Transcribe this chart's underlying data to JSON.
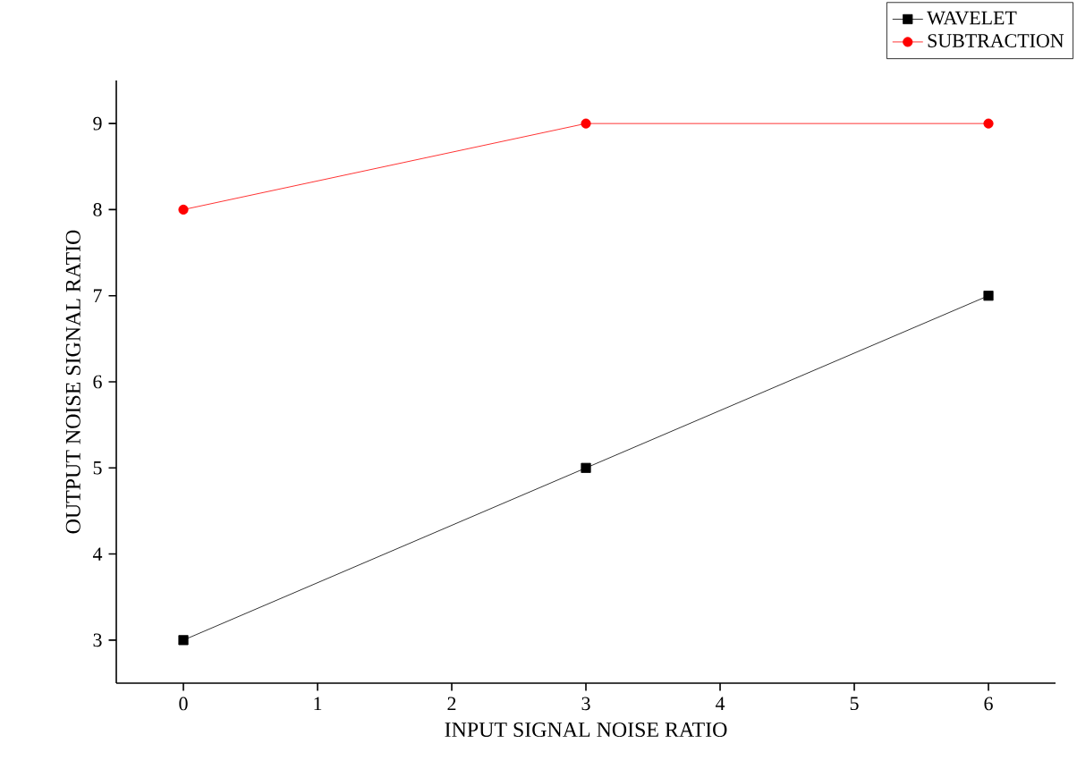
{
  "chart_data": {
    "type": "line",
    "xlabel": "INPUT SIGNAL NOISE RATIO",
    "ylabel": "OUTPUT NOISE SIGNAL RATIO",
    "x": [
      0,
      3,
      6
    ],
    "series": [
      {
        "name": "WAVELET",
        "color": "#000000",
        "values": [
          3,
          5,
          7
        ],
        "marker": "square"
      },
      {
        "name": "SUBTRACTION",
        "color": "#ff0000",
        "values": [
          8,
          9,
          9
        ],
        "marker": "circle"
      }
    ],
    "xlim": [
      -0.5,
      6.5
    ],
    "xticks": [
      0,
      1,
      2,
      3,
      4,
      5,
      6
    ],
    "ylim": [
      2.5,
      9.5
    ],
    "yticks": [
      3,
      4,
      5,
      6,
      7,
      8,
      9
    ],
    "legend": "top right",
    "grid": false,
    "line_style": "solid"
  }
}
